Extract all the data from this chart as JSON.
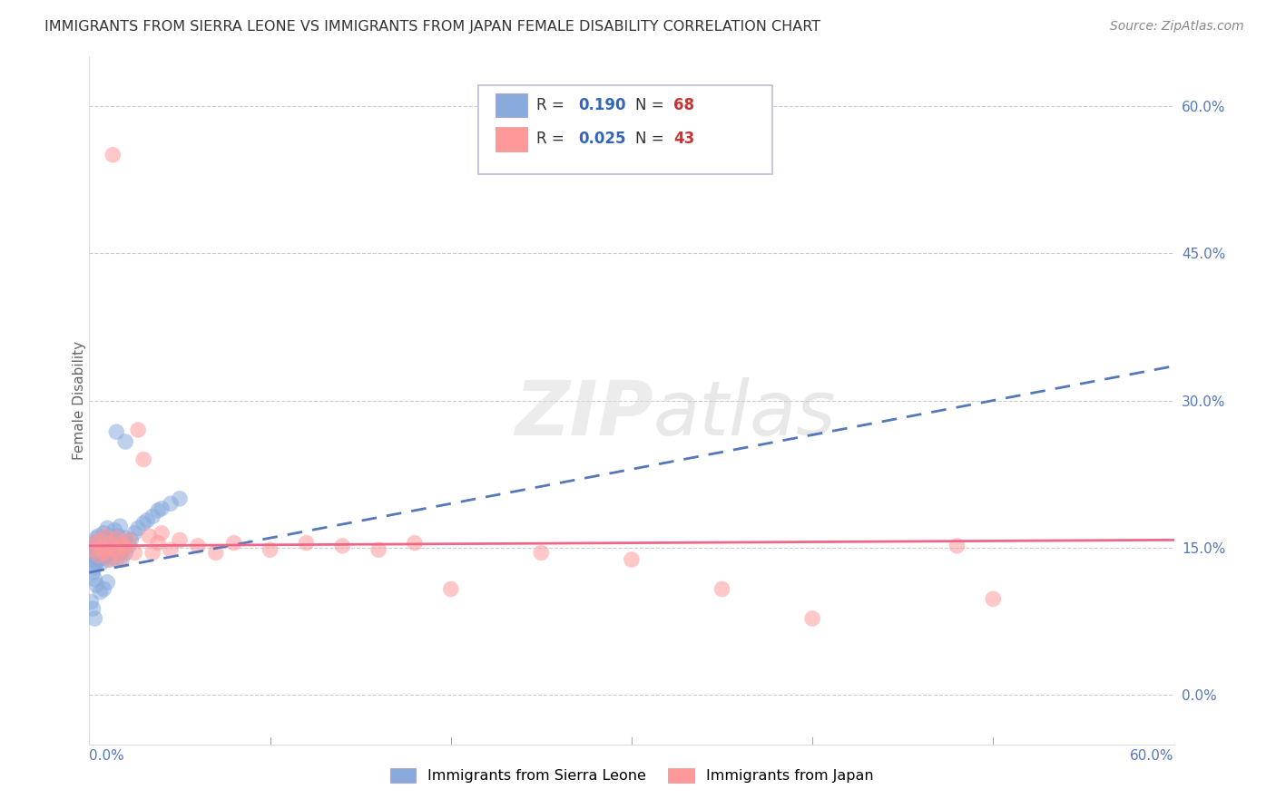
{
  "title": "IMMIGRANTS FROM SIERRA LEONE VS IMMIGRANTS FROM JAPAN FEMALE DISABILITY CORRELATION CHART",
  "source": "Source: ZipAtlas.com",
  "ylabel": "Female Disability",
  "legend_label1": "Immigrants from Sierra Leone",
  "legend_label2": "Immigrants from Japan",
  "R1": 0.19,
  "N1": 68,
  "R2": 0.025,
  "N2": 43,
  "color1": "#88AADD",
  "color2": "#FF9999",
  "trend1_color": "#5577BB",
  "trend2_color": "#EE6688",
  "background_color": "#FFFFFF",
  "xlim": [
    0.0,
    0.6
  ],
  "ylim": [
    -0.05,
    0.65
  ],
  "ytick_positions": [
    0.0,
    0.15,
    0.3,
    0.45,
    0.6
  ],
  "ytick_labels": [
    "0.0%",
    "15.0%",
    "30.0%",
    "45.0%",
    "60.0%"
  ],
  "trend1_y_start": 0.125,
  "trend1_y_end": 0.335,
  "trend2_y_start": 0.152,
  "trend2_y_end": 0.158,
  "sierra_leone_x": [
    0.001,
    0.002,
    0.002,
    0.003,
    0.003,
    0.003,
    0.004,
    0.004,
    0.004,
    0.005,
    0.005,
    0.005,
    0.005,
    0.006,
    0.006,
    0.006,
    0.007,
    0.007,
    0.007,
    0.008,
    0.008,
    0.008,
    0.009,
    0.009,
    0.01,
    0.01,
    0.01,
    0.011,
    0.011,
    0.012,
    0.012,
    0.013,
    0.013,
    0.014,
    0.014,
    0.015,
    0.015,
    0.016,
    0.016,
    0.017,
    0.017,
    0.018,
    0.018,
    0.019,
    0.02,
    0.02,
    0.022,
    0.023,
    0.025,
    0.027,
    0.03,
    0.032,
    0.035,
    0.038,
    0.04,
    0.045,
    0.05,
    0.002,
    0.003,
    0.004,
    0.006,
    0.008,
    0.01,
    0.001,
    0.002,
    0.003,
    0.015,
    0.02
  ],
  "sierra_leone_y": [
    0.145,
    0.15,
    0.138,
    0.155,
    0.142,
    0.13,
    0.16,
    0.148,
    0.135,
    0.152,
    0.145,
    0.138,
    0.162,
    0.148,
    0.155,
    0.14,
    0.158,
    0.145,
    0.135,
    0.152,
    0.165,
    0.14,
    0.148,
    0.16,
    0.155,
    0.142,
    0.17,
    0.148,
    0.138,
    0.162,
    0.145,
    0.155,
    0.14,
    0.168,
    0.148,
    0.158,
    0.138,
    0.152,
    0.162,
    0.145,
    0.172,
    0.148,
    0.138,
    0.155,
    0.16,
    0.145,
    0.152,
    0.158,
    0.165,
    0.17,
    0.175,
    0.178,
    0.182,
    0.188,
    0.19,
    0.195,
    0.2,
    0.125,
    0.118,
    0.112,
    0.105,
    0.108,
    0.115,
    0.095,
    0.088,
    0.078,
    0.268,
    0.258
  ],
  "japan_x": [
    0.002,
    0.003,
    0.005,
    0.006,
    0.007,
    0.008,
    0.009,
    0.01,
    0.011,
    0.012,
    0.013,
    0.014,
    0.015,
    0.016,
    0.017,
    0.018,
    0.019,
    0.02,
    0.022,
    0.025,
    0.027,
    0.03,
    0.033,
    0.035,
    0.038,
    0.04,
    0.045,
    0.05,
    0.06,
    0.07,
    0.08,
    0.1,
    0.12,
    0.14,
    0.16,
    0.18,
    0.2,
    0.25,
    0.3,
    0.35,
    0.4,
    0.48,
    0.5
  ],
  "japan_y": [
    0.148,
    0.155,
    0.142,
    0.158,
    0.15,
    0.145,
    0.162,
    0.148,
    0.138,
    0.155,
    0.55,
    0.148,
    0.16,
    0.145,
    0.138,
    0.155,
    0.152,
    0.148,
    0.158,
    0.145,
    0.27,
    0.24,
    0.162,
    0.145,
    0.155,
    0.165,
    0.148,
    0.158,
    0.152,
    0.145,
    0.155,
    0.148,
    0.155,
    0.152,
    0.148,
    0.155,
    0.108,
    0.145,
    0.138,
    0.108,
    0.078,
    0.152,
    0.098
  ]
}
